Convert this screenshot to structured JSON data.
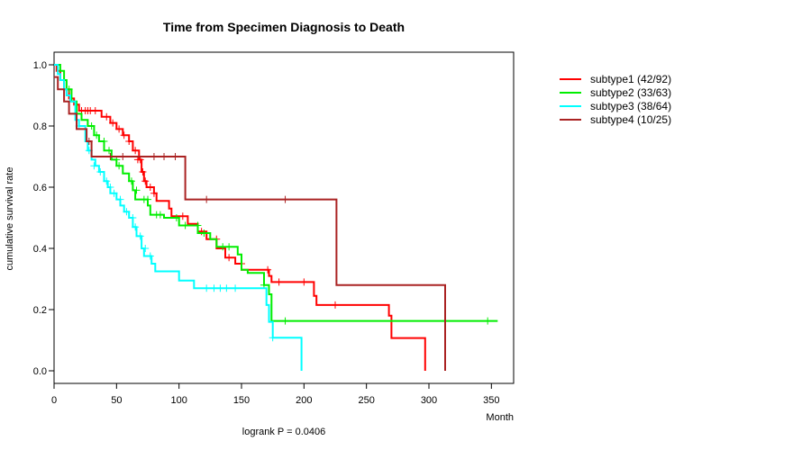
{
  "chart_data": {
    "type": "line",
    "title": "Time from Specimen Diagnosis to Death",
    "xlabel": "Month",
    "ylabel": "cumulative survival rate",
    "xlim": [
      0,
      360
    ],
    "ylim": [
      0,
      1.0
    ],
    "xticks": [
      "0",
      "50",
      "100",
      "150",
      "200",
      "250",
      "300",
      "350"
    ],
    "yticks": [
      "0.0",
      "0.2",
      "0.4",
      "0.6",
      "0.8",
      "1.0"
    ],
    "xtick_values": [
      0,
      50,
      100,
      150,
      200,
      250,
      300,
      350
    ],
    "ytick_values": [
      0.0,
      0.2,
      0.4,
      0.6,
      0.8,
      1.0
    ],
    "pvalue_text": "logrank P = 0.0406",
    "legend_position": "right",
    "series": [
      {
        "name": "subtype1 (42/92)",
        "color": "#ff0000",
        "steps": [
          [
            0,
            1.0
          ],
          [
            2,
            0.98
          ],
          [
            5,
            0.95
          ],
          [
            8,
            0.92
          ],
          [
            12,
            0.89
          ],
          [
            16,
            0.87
          ],
          [
            20,
            0.85
          ],
          [
            30,
            0.85
          ],
          [
            38,
            0.83
          ],
          [
            45,
            0.81
          ],
          [
            50,
            0.79
          ],
          [
            55,
            0.77
          ],
          [
            60,
            0.75
          ],
          [
            63,
            0.72
          ],
          [
            68,
            0.69
          ],
          [
            70,
            0.65
          ],
          [
            72,
            0.62
          ],
          [
            74,
            0.6
          ],
          [
            80,
            0.58
          ],
          [
            82,
            0.555
          ],
          [
            92,
            0.53
          ],
          [
            94,
            0.505
          ],
          [
            107,
            0.48
          ],
          [
            115,
            0.455
          ],
          [
            122,
            0.43
          ],
          [
            130,
            0.4
          ],
          [
            137,
            0.37
          ],
          [
            145,
            0.35
          ],
          [
            150,
            0.33
          ],
          [
            172,
            0.31
          ],
          [
            174,
            0.29
          ],
          [
            208,
            0.245
          ],
          [
            210,
            0.215
          ],
          [
            268,
            0.18
          ],
          [
            270,
            0.107
          ],
          [
            297,
            0.0
          ]
        ],
        "censors": [
          [
            22,
            0.85
          ],
          [
            25,
            0.85
          ],
          [
            27,
            0.85
          ],
          [
            29,
            0.85
          ],
          [
            33,
            0.85
          ],
          [
            42,
            0.83
          ],
          [
            47,
            0.81
          ],
          [
            52,
            0.79
          ],
          [
            56,
            0.77
          ],
          [
            60,
            0.75
          ],
          [
            65,
            0.72
          ],
          [
            67,
            0.69
          ],
          [
            69,
            0.69
          ],
          [
            71,
            0.65
          ],
          [
            73,
            0.62
          ],
          [
            77,
            0.6
          ],
          [
            80,
            0.58
          ],
          [
            103,
            0.505
          ],
          [
            118,
            0.455
          ],
          [
            130,
            0.43
          ],
          [
            140,
            0.37
          ],
          [
            150,
            0.35
          ],
          [
            171,
            0.33
          ],
          [
            180,
            0.29
          ],
          [
            200,
            0.29
          ],
          [
            225,
            0.215
          ]
        ]
      },
      {
        "name": "subtype2 (33/63)",
        "color": "#00ee00",
        "steps": [
          [
            0,
            1.0
          ],
          [
            5,
            0.98
          ],
          [
            8,
            0.95
          ],
          [
            10,
            0.92
          ],
          [
            14,
            0.88
          ],
          [
            18,
            0.84
          ],
          [
            22,
            0.82
          ],
          [
            27,
            0.8
          ],
          [
            32,
            0.77
          ],
          [
            36,
            0.75
          ],
          [
            40,
            0.72
          ],
          [
            46,
            0.69
          ],
          [
            50,
            0.67
          ],
          [
            55,
            0.645
          ],
          [
            60,
            0.62
          ],
          [
            63,
            0.59
          ],
          [
            65,
            0.56
          ],
          [
            75,
            0.54
          ],
          [
            77,
            0.51
          ],
          [
            88,
            0.5
          ],
          [
            100,
            0.475
          ],
          [
            110,
            0.475
          ],
          [
            115,
            0.45
          ],
          [
            125,
            0.43
          ],
          [
            130,
            0.405
          ],
          [
            147,
            0.38
          ],
          [
            150,
            0.33
          ],
          [
            155,
            0.32
          ],
          [
            168,
            0.28
          ],
          [
            172,
            0.25
          ],
          [
            174,
            0.163
          ],
          [
            355,
            0.163
          ]
        ],
        "censors": [
          [
            12,
            0.92
          ],
          [
            30,
            0.8
          ],
          [
            34,
            0.77
          ],
          [
            40,
            0.75
          ],
          [
            44,
            0.72
          ],
          [
            50,
            0.69
          ],
          [
            52,
            0.67
          ],
          [
            62,
            0.62
          ],
          [
            66,
            0.59
          ],
          [
            72,
            0.56
          ],
          [
            75,
            0.56
          ],
          [
            82,
            0.51
          ],
          [
            85,
            0.51
          ],
          [
            98,
            0.5
          ],
          [
            105,
            0.475
          ],
          [
            115,
            0.475
          ],
          [
            120,
            0.45
          ],
          [
            135,
            0.405
          ],
          [
            140,
            0.405
          ],
          [
            168,
            0.28
          ],
          [
            185,
            0.163
          ],
          [
            347,
            0.163
          ]
        ]
      },
      {
        "name": "subtype3 (38/64)",
        "color": "#00ffff",
        "steps": [
          [
            0,
            1.0
          ],
          [
            3,
            0.97
          ],
          [
            5,
            0.95
          ],
          [
            8,
            0.92
          ],
          [
            10,
            0.9
          ],
          [
            13,
            0.88
          ],
          [
            17,
            0.82
          ],
          [
            20,
            0.8
          ],
          [
            25,
            0.75
          ],
          [
            27,
            0.72
          ],
          [
            30,
            0.69
          ],
          [
            33,
            0.67
          ],
          [
            36,
            0.65
          ],
          [
            40,
            0.62
          ],
          [
            43,
            0.6
          ],
          [
            45,
            0.58
          ],
          [
            50,
            0.56
          ],
          [
            53,
            0.54
          ],
          [
            56,
            0.52
          ],
          [
            60,
            0.5
          ],
          [
            63,
            0.47
          ],
          [
            66,
            0.44
          ],
          [
            70,
            0.4
          ],
          [
            72,
            0.375
          ],
          [
            78,
            0.35
          ],
          [
            81,
            0.325
          ],
          [
            100,
            0.295
          ],
          [
            112,
            0.27
          ],
          [
            170,
            0.215
          ],
          [
            172,
            0.16
          ],
          [
            175,
            0.108
          ],
          [
            198,
            0.0
          ]
        ],
        "censors": [
          [
            20,
            0.8
          ],
          [
            28,
            0.72
          ],
          [
            32,
            0.67
          ],
          [
            37,
            0.65
          ],
          [
            42,
            0.62
          ],
          [
            45,
            0.6
          ],
          [
            48,
            0.58
          ],
          [
            53,
            0.56
          ],
          [
            58,
            0.52
          ],
          [
            63,
            0.5
          ],
          [
            65,
            0.47
          ],
          [
            69,
            0.44
          ],
          [
            73,
            0.4
          ],
          [
            77,
            0.375
          ],
          [
            122,
            0.27
          ],
          [
            128,
            0.27
          ],
          [
            133,
            0.27
          ],
          [
            138,
            0.27
          ],
          [
            145,
            0.27
          ],
          [
            175,
            0.108
          ]
        ]
      },
      {
        "name": "subtype4 (10/25)",
        "color": "#aa2222",
        "steps": [
          [
            0,
            0.96
          ],
          [
            3,
            0.92
          ],
          [
            8,
            0.88
          ],
          [
            12,
            0.84
          ],
          [
            18,
            0.79
          ],
          [
            26,
            0.75
          ],
          [
            30,
            0.7
          ],
          [
            105,
            0.56
          ],
          [
            226,
            0.28
          ],
          [
            313,
            0.0
          ]
        ],
        "censors": [
          [
            28,
            0.75
          ],
          [
            45,
            0.7
          ],
          [
            55,
            0.7
          ],
          [
            80,
            0.7
          ],
          [
            88,
            0.7
          ],
          [
            97,
            0.7
          ],
          [
            122,
            0.56
          ],
          [
            185,
            0.56
          ]
        ]
      }
    ]
  }
}
